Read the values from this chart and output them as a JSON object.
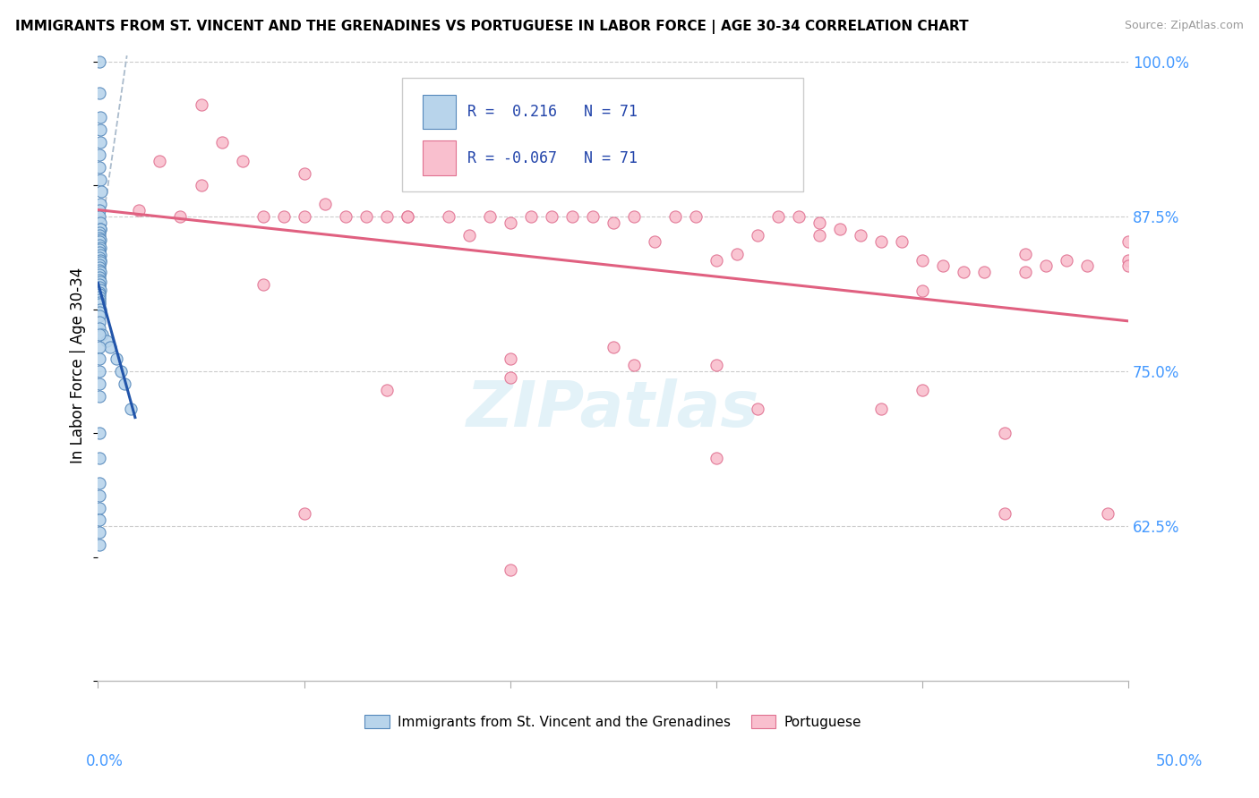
{
  "title": "IMMIGRANTS FROM ST. VINCENT AND THE GRENADINES VS PORTUGUESE IN LABOR FORCE | AGE 30-34 CORRELATION CHART",
  "source": "Source: ZipAtlas.com",
  "ylabel": "In Labor Force | Age 30-34",
  "xlim": [
    0.0,
    0.5
  ],
  "ylim": [
    0.5,
    1.01
  ],
  "ytick_vals": [
    0.625,
    0.75,
    0.875,
    1.0
  ],
  "ytick_labels": [
    "62.5%",
    "75.0%",
    "87.5%",
    "100.0%"
  ],
  "blue_label": "Immigrants from St. Vincent and the Grenadines",
  "pink_label": "Portuguese",
  "blue_color": "#b8d4eb",
  "blue_edge": "#5588bb",
  "pink_color": "#f9bfce",
  "pink_edge": "#e07090",
  "blue_line_color": "#2255aa",
  "pink_line_color": "#e06080",
  "dash_line_color": "#aabbcc",
  "legend_text_color": "#2244aa",
  "tick_color": "#4499ff",
  "title_fontsize": 11,
  "source_fontsize": 9,
  "blue_R_text": "R =  0.216   N = 71",
  "pink_R_text": "R = -0.067   N = 71",
  "blue_x": [
    0.0005,
    0.0008,
    0.001,
    0.001,
    0.0012,
    0.0005,
    0.0007,
    0.001,
    0.0015,
    0.001,
    0.0005,
    0.0008,
    0.001,
    0.0013,
    0.001,
    0.0006,
    0.0007,
    0.0008,
    0.001,
    0.0006,
    0.0005,
    0.0009,
    0.0007,
    0.0006,
    0.001,
    0.0007,
    0.0012,
    0.0009,
    0.0006,
    0.0007,
    0.0006,
    0.0009,
    0.0007,
    0.0006,
    0.0005,
    0.001,
    0.0006,
    0.0007,
    0.0009,
    0.0006,
    0.0005,
    0.0006,
    0.0007,
    0.0005,
    0.0006,
    0.0009,
    0.0005,
    0.0006,
    0.0007,
    0.0005,
    0.002,
    0.004,
    0.006,
    0.009,
    0.011,
    0.013,
    0.016,
    0.0005,
    0.0006,
    0.0007,
    0.0005,
    0.0006,
    0.0007,
    0.0008,
    0.0005,
    0.0006,
    0.0007,
    0.0008,
    0.0005,
    0.0006,
    0.0007
  ],
  "blue_y": [
    1.0,
    0.975,
    0.955,
    0.945,
    0.935,
    0.925,
    0.915,
    0.905,
    0.895,
    0.885,
    0.88,
    0.875,
    0.87,
    0.865,
    0.865,
    0.862,
    0.86,
    0.858,
    0.856,
    0.855,
    0.852,
    0.85,
    0.848,
    0.846,
    0.844,
    0.842,
    0.84,
    0.838,
    0.836,
    0.834,
    0.832,
    0.83,
    0.828,
    0.826,
    0.824,
    0.822,
    0.82,
    0.818,
    0.816,
    0.814,
    0.812,
    0.81,
    0.808,
    0.806,
    0.804,
    0.8,
    0.798,
    0.795,
    0.79,
    0.785,
    0.78,
    0.775,
    0.77,
    0.76,
    0.75,
    0.74,
    0.72,
    0.7,
    0.68,
    0.66,
    0.64,
    0.63,
    0.62,
    0.61,
    0.78,
    0.77,
    0.76,
    0.75,
    0.74,
    0.73,
    0.65
  ],
  "pink_x": [
    0.02,
    0.03,
    0.04,
    0.05,
    0.06,
    0.07,
    0.08,
    0.09,
    0.1,
    0.11,
    0.12,
    0.13,
    0.14,
    0.15,
    0.16,
    0.17,
    0.18,
    0.19,
    0.2,
    0.21,
    0.22,
    0.23,
    0.24,
    0.25,
    0.26,
    0.27,
    0.28,
    0.29,
    0.3,
    0.31,
    0.32,
    0.33,
    0.34,
    0.35,
    0.36,
    0.37,
    0.38,
    0.39,
    0.4,
    0.41,
    0.42,
    0.43,
    0.44,
    0.45,
    0.46,
    0.47,
    0.48,
    0.49,
    0.5,
    0.05,
    0.1,
    0.15,
    0.2,
    0.25,
    0.3,
    0.35,
    0.4,
    0.45,
    0.5,
    0.08,
    0.14,
    0.2,
    0.26,
    0.32,
    0.38,
    0.44,
    0.5,
    0.1,
    0.2,
    0.3,
    0.4
  ],
  "pink_y": [
    0.88,
    0.92,
    0.875,
    0.965,
    0.935,
    0.92,
    0.875,
    0.875,
    0.91,
    0.885,
    0.875,
    0.875,
    0.875,
    0.875,
    0.9,
    0.875,
    0.86,
    0.875,
    0.87,
    0.875,
    0.875,
    0.875,
    0.875,
    0.87,
    0.875,
    0.855,
    0.875,
    0.875,
    0.84,
    0.845,
    0.86,
    0.875,
    0.875,
    0.86,
    0.865,
    0.86,
    0.855,
    0.855,
    0.84,
    0.835,
    0.83,
    0.83,
    0.635,
    0.83,
    0.835,
    0.84,
    0.835,
    0.635,
    0.84,
    0.9,
    0.875,
    0.875,
    0.76,
    0.77,
    0.755,
    0.87,
    0.815,
    0.845,
    0.835,
    0.82,
    0.735,
    0.745,
    0.755,
    0.72,
    0.72,
    0.7,
    0.855,
    0.635,
    0.59,
    0.68,
    0.735
  ]
}
